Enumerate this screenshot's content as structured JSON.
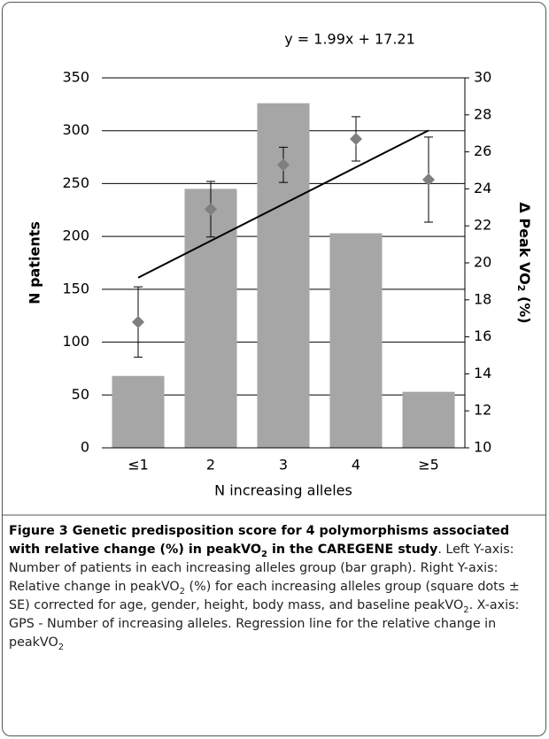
{
  "chart_data": {
    "type": "bar",
    "categories": [
      "≤1",
      "2",
      "3",
      "4",
      "≥5"
    ],
    "xlabel": "N increasing alleles",
    "ylabel": "N patients",
    "y2label": [
      "Δ Peak VO",
      "2",
      " (%)"
    ],
    "ylim": [
      0,
      350
    ],
    "yticks": [
      0,
      50,
      100,
      150,
      200,
      250,
      300,
      350
    ],
    "y2lim": [
      10,
      30
    ],
    "y2ticks": [
      10,
      12,
      14,
      16,
      18,
      20,
      22,
      24,
      26,
      28,
      30
    ],
    "grid": true,
    "series": [
      {
        "type": "bar",
        "color": "#a6a6a6",
        "values": [
          68,
          245,
          326,
          203,
          53
        ]
      },
      {
        "type": "scatter",
        "axis": "y2",
        "color": "#7f7f7f",
        "values": [
          16.8,
          22.9,
          25.3,
          26.7,
          24.5
        ],
        "errors": [
          1.9,
          1.5,
          0.95,
          1.2,
          2.3
        ]
      }
    ],
    "trendline": {
      "label": "y = 1.99x + 17.21",
      "slope": 1.99,
      "intercept": 17.21
    }
  },
  "caption": {
    "runs": [
      "Figure 3 Genetic predisposition score for 4 polymorphisms associated with relative change (%) in peakVO",
      "2",
      " in the CAREGENE study",
      ". Left Y-axis: Number of patients in each increasing alleles group (bar graph). Right Y-axis: Relative change in peakVO",
      "2",
      " (%) for each increasing alleles group (square dots ± SE) corrected for age, gender, height, body mass, and baseline peakVO",
      "2",
      ". X-axis: GPS - Number of increasing alleles. Regression line for the relative change in peakVO",
      "2"
    ]
  }
}
